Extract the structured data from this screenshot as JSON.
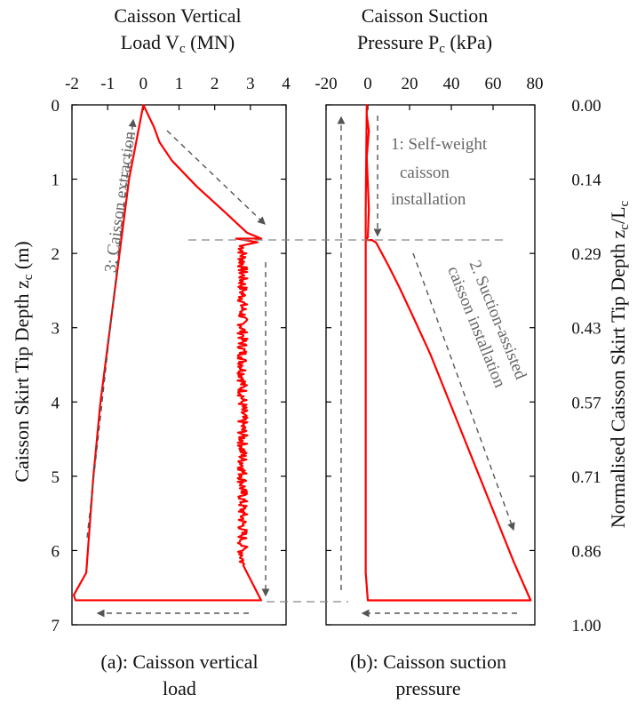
{
  "figure": {
    "y_left_label": "Caisson Skirt Tip Depth z",
    "y_left_sub": "c",
    "y_left_unit": " (m)",
    "y_right_label": "Normalised Caisson Skirt Tip Depth z",
    "y_right_sub1": "c",
    "y_right_mid": "/L",
    "y_right_sub2": "c",
    "y_left_ticks": [
      "0",
      "1",
      "2",
      "3",
      "4",
      "5",
      "6",
      "7"
    ],
    "y_right_ticks": [
      "0.00",
      "0.14",
      "0.29",
      "0.43",
      "0.57",
      "0.71",
      "0.86",
      "1.00"
    ]
  },
  "panel_a": {
    "title_line1": "Caisson Vertical",
    "title_line2_a": "Load V",
    "title_line2_sub": "c",
    "title_line2_b": " (MN)",
    "x_ticks": [
      "-2",
      "-1",
      "0",
      "1",
      "2",
      "3",
      "4"
    ],
    "caption_line1": "(a): Caisson vertical",
    "caption_line2": "load",
    "annotation_extraction": "3: Caisson extraction"
  },
  "panel_b": {
    "title_line1": "Caisson Suction",
    "title_line2_a": "Pressure P",
    "title_line2_sub": "c",
    "title_line2_b": " (kPa)",
    "x_ticks": [
      "-20",
      "0",
      "20",
      "40",
      "60",
      "80"
    ],
    "caption_line1": "(b): Caisson suction",
    "caption_line2": "pressure",
    "annotation_self_weight": [
      "1: Self-weight",
      "caisson",
      "installation"
    ],
    "annotation_suction": [
      "2. Suction-assisted",
      "caisson installation"
    ]
  },
  "colors": {
    "series": "#ff0000",
    "axis": "#000000",
    "arrow": "#555555"
  },
  "chart_data": [
    {
      "type": "line",
      "title": "Caisson Vertical Load Vc (MN)",
      "xlabel": "Caisson Vertical Load Vc (MN)",
      "ylabel": "Caisson Skirt Tip Depth zc (m)",
      "xlim": [
        -2,
        4
      ],
      "ylim": [
        7,
        0
      ],
      "y_inverted": true,
      "grid": false,
      "series": [
        {
          "x": [
            0,
            0.3,
            0.45,
            0.8,
            1.5,
            2.3,
            2.9,
            3.3,
            2.6,
            3.2,
            2.7,
            2.75,
            2.8,
            2.75,
            2.8,
            2.75,
            2.8,
            2.75,
            2.8,
            2.75,
            2.8,
            2.75,
            2.8,
            2.75,
            2.8,
            3.3,
            2.5,
            0.2,
            -1.2,
            -1.9,
            -1.95,
            -1.6,
            -1.4,
            -1.2,
            -0.8,
            -0.4,
            0
          ],
          "y": [
            0,
            0.3,
            0.5,
            0.75,
            1.1,
            1.45,
            1.72,
            1.8,
            1.8,
            1.85,
            1.9,
            2.2,
            2.5,
            2.8,
            3.1,
            3.4,
            3.7,
            4.0,
            4.3,
            4.6,
            4.9,
            5.2,
            5.5,
            5.8,
            6.2,
            6.67,
            6.67,
            6.67,
            6.67,
            6.67,
            6.6,
            6.3,
            5.0,
            4.0,
            2.5,
            1.0,
            0
          ]
        }
      ]
    },
    {
      "type": "line",
      "title": "Caisson Suction Pressure Pc (kPa)",
      "xlabel": "Caisson Suction Pressure Pc (kPa)",
      "ylabel": "Normalised Caisson Skirt Tip Depth zc/Lc",
      "xlim": [
        -20,
        80
      ],
      "ylim": [
        1.0,
        0.0
      ],
      "y_inverted": true,
      "grid": false,
      "series": [
        {
          "x": [
            -0.5,
            -0.5,
            0.5,
            -0.5,
            0.5,
            0,
            -1,
            2,
            4,
            6,
            10,
            15,
            22,
            30,
            38,
            46,
            54,
            62,
            70,
            78,
            76,
            40,
            0,
            -1,
            -1,
            -1,
            -1,
            -0.5
          ],
          "y": [
            0,
            0.02,
            0.05,
            0.1,
            0.2,
            0.255,
            0.26,
            0.26,
            0.265,
            0.28,
            0.31,
            0.35,
            0.41,
            0.48,
            0.56,
            0.64,
            0.72,
            0.8,
            0.88,
            0.953,
            0.953,
            0.953,
            0.953,
            0.9,
            0.6,
            0.4,
            0.2,
            0
          ]
        }
      ]
    }
  ]
}
